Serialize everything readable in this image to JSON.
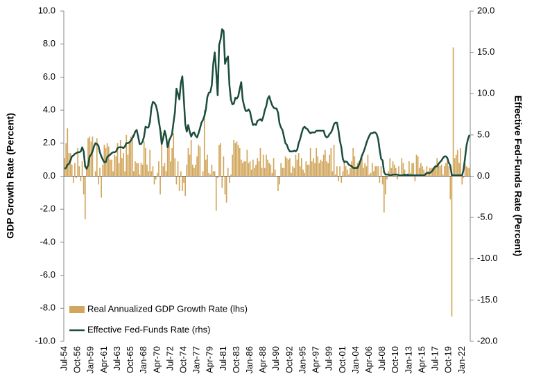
{
  "chart_data": {
    "type": "combo",
    "categories": [
      "Jul-54",
      null,
      null,
      null,
      null,
      null,
      null,
      null,
      null,
      "Oct-56",
      null,
      null,
      null,
      null,
      null,
      null,
      null,
      null,
      "Jan-59",
      null,
      null,
      null,
      null,
      null,
      null,
      null,
      null,
      "Apr-61",
      null,
      null,
      null,
      null,
      null,
      null,
      null,
      null,
      "Jul-63",
      null,
      null,
      null,
      null,
      null,
      null,
      null,
      null,
      "Oct-65",
      null,
      null,
      null,
      null,
      null,
      null,
      null,
      null,
      "Jan-68",
      null,
      null,
      null,
      null,
      null,
      null,
      null,
      null,
      "Apr-70",
      null,
      null,
      null,
      null,
      null,
      null,
      null,
      null,
      "Jul-72",
      null,
      null,
      null,
      null,
      null,
      null,
      null,
      null,
      "Oct-74",
      null,
      null,
      null,
      null,
      null,
      null,
      null,
      null,
      "Jan-77",
      null,
      null,
      null,
      null,
      null,
      null,
      null,
      null,
      "Apr-79",
      null,
      null,
      null,
      null,
      null,
      null,
      null,
      null,
      "Jul-81",
      null,
      null,
      null,
      null,
      null,
      null,
      null,
      null,
      "Oct-83",
      null,
      null,
      null,
      null,
      null,
      null,
      null,
      null,
      "Jan-86",
      null,
      null,
      null,
      null,
      null,
      null,
      null,
      null,
      "Apr-88",
      null,
      null,
      null,
      null,
      null,
      null,
      null,
      null,
      "Jul-90",
      null,
      null,
      null,
      null,
      null,
      null,
      null,
      null,
      "Oct-92",
      null,
      null,
      null,
      null,
      null,
      null,
      null,
      null,
      "Jan-95",
      null,
      null,
      null,
      null,
      null,
      null,
      null,
      null,
      "Apr-97",
      null,
      null,
      null,
      null,
      null,
      null,
      null,
      null,
      "Jul-99",
      null,
      null,
      null,
      null,
      null,
      null,
      null,
      null,
      "Oct-01",
      null,
      null,
      null,
      null,
      null,
      null,
      null,
      null,
      "Jan-04",
      null,
      null,
      null,
      null,
      null,
      null,
      null,
      null,
      "Apr-06",
      null,
      null,
      null,
      null,
      null,
      null,
      null,
      null,
      "Jul-08",
      null,
      null,
      null,
      null,
      null,
      null,
      null,
      null,
      "Oct-10",
      null,
      null,
      null,
      null,
      null,
      null,
      null,
      null,
      "Jan-13",
      null,
      null,
      null,
      null,
      null,
      null,
      null,
      null,
      "Apr-15",
      null,
      null,
      null,
      null,
      null,
      null,
      null,
      null,
      "Jul-17",
      null,
      null,
      null,
      null,
      null,
      null,
      null,
      null,
      "Oct-19",
      null,
      null,
      null,
      null,
      null,
      null,
      null,
      null,
      "Jan-22",
      null,
      null,
      null,
      null,
      null
    ],
    "series": [
      {
        "name": "Real Annualized GDP Growth Rate (lhs)",
        "type": "bar",
        "color": "#d2a65c",
        "values": [
          1.1,
          2.0,
          2.9,
          1.4,
          1.4,
          0.7,
          -0.4,
          0.8,
          -0.1,
          1.7,
          0.6,
          -0.3,
          0.9,
          -1.1,
          -2.6,
          0.6,
          2.3,
          2.4,
          2.1,
          2.4,
          0.0,
          0.3,
          2.3,
          -0.5,
          0.5,
          -1.3,
          0.7,
          1.9,
          1.7,
          2.0,
          1.8,
          1.0,
          1.0,
          0.3,
          1.3,
          1.2,
          2.0,
          0.8,
          2.2,
          1.1,
          1.4,
          0.3,
          2.5,
          1.3,
          2.0,
          2.4,
          2.5,
          0.3,
          0.9,
          0.8,
          0.8,
          0.1,
          0.8,
          0.7,
          2.1,
          1.7,
          0.7,
          0.3,
          1.6,
          0.3,
          0.6,
          -0.5,
          -0.2,
          0.2,
          0.9,
          -1.1,
          2.7,
          0.6,
          0.8,
          0.3,
          1.8,
          2.3,
          0.9,
          1.7,
          2.6,
          1.1,
          -0.5,
          0.9,
          -0.9,
          0.3,
          -0.9,
          -0.4,
          -1.2,
          0.7,
          1.7,
          1.3,
          2.2,
          0.7,
          0.5,
          0.7,
          1.2,
          1.9,
          1.8,
          0.0,
          0.3,
          4.0,
          1.0,
          1.3,
          0.2,
          0.1,
          0.7,
          0.3,
          0.3,
          -2.1,
          -0.1,
          1.9,
          2.0,
          -0.7,
          1.2,
          -1.1,
          -1.6,
          0.5,
          -0.4,
          0.1,
          1.3,
          2.2,
          2.0,
          2.1,
          1.9,
          1.7,
          1.0,
          0.8,
          0.9,
          0.9,
          1.6,
          0.8,
          0.9,
          0.4,
          1.0,
          0.5,
          0.7,
          1.1,
          0.9,
          1.7,
          0.5,
          1.3,
          0.5,
          1.3,
          1.0,
          0.8,
          0.7,
          0.2,
          1.1,
          0.4,
          0.0,
          -0.9,
          -0.5,
          0.8,
          0.5,
          0.5,
          1.2,
          1.1,
          1.0,
          1.1,
          0.2,
          0.6,
          0.5,
          1.3,
          1.0,
          1.4,
          0.6,
          1.1,
          0.4,
          0.2,
          0.9,
          0.7,
          0.7,
          1.7,
          0.9,
          1.1,
          0.8,
          1.7,
          1.2,
          0.8,
          1.0,
          0.9,
          1.3,
          1.6,
          0.9,
          0.8,
          1.3,
          1.7,
          0.3,
          1.9,
          0.1,
          0.6,
          -0.3,
          0.6,
          -0.4,
          0.3,
          0.8,
          0.6,
          0.4,
          0.1,
          0.5,
          0.9,
          1.7,
          1.2,
          0.6,
          0.8,
          0.9,
          1.0,
          1.1,
          0.5,
          0.8,
          0.6,
          1.3,
          0.1,
          0.2,
          0.8,
          0.3,
          0.6,
          0.6,
          0.6,
          -0.4,
          0.6,
          -0.5,
          -2.2,
          -1.1,
          -0.2,
          0.3,
          1.1,
          0.5,
          0.9,
          0.7,
          0.5,
          -0.2,
          0.6,
          0.0,
          1.1,
          0.8,
          0.4,
          0.1,
          0.1,
          0.9,
          0.2,
          0.8,
          0.8,
          -0.3,
          1.3,
          1.2,
          0.5,
          0.8,
          0.6,
          0.4,
          0.2,
          0.6,
          0.3,
          0.5,
          0.5,
          0.5,
          0.6,
          0.7,
          1.1,
          0.8,
          0.6,
          0.7,
          0.1,
          0.6,
          0.8,
          0.9,
          0.6,
          -1.4,
          -8.5,
          7.8,
          1.1,
          1.3,
          1.6,
          0.8,
          1.7,
          -0.5,
          -0.1,
          0.8,
          0.6,
          0.5,
          0.5
        ]
      },
      {
        "name": "Effective Fed-Funds Rate (rhs)",
        "type": "line",
        "axis": "y2",
        "color": "#1b4d3e",
        "values": [
          0.9,
          1.0,
          1.4,
          1.5,
          1.9,
          2.4,
          2.5,
          2.7,
          2.8,
          2.9,
          2.9,
          3.0,
          3.5,
          3.0,
          1.2,
          0.9,
          1.3,
          2.4,
          2.6,
          3.0,
          3.6,
          4.0,
          3.9,
          3.7,
          2.9,
          2.4,
          2.0,
          1.7,
          1.7,
          2.3,
          2.5,
          2.6,
          2.8,
          2.9,
          2.9,
          3.0,
          3.4,
          3.5,
          3.5,
          3.5,
          3.4,
          3.6,
          4.0,
          4.0,
          4.1,
          4.3,
          4.6,
          4.9,
          5.4,
          5.6,
          4.8,
          3.9,
          3.9,
          4.2,
          4.8,
          6.0,
          5.9,
          5.9,
          6.6,
          8.3,
          9.0,
          8.9,
          8.6,
          7.9,
          6.7,
          5.6,
          3.9,
          4.6,
          5.5,
          4.8,
          3.5,
          4.3,
          4.7,
          5.1,
          6.5,
          7.8,
          10.6,
          10.0,
          9.3,
          11.3,
          12.1,
          9.4,
          6.3,
          5.4,
          6.2,
          5.4,
          4.8,
          5.2,
          5.3,
          4.9,
          4.7,
          5.2,
          5.8,
          6.5,
          6.8,
          7.3,
          8.1,
          9.6,
          10.1,
          10.2,
          11.0,
          13.6,
          15.0,
          12.7,
          9.8,
          15.9,
          16.6,
          17.8,
          17.6,
          13.6,
          14.2,
          14.5,
          11.0,
          9.3,
          8.7,
          8.8,
          9.5,
          9.4,
          9.7,
          10.6,
          11.4,
          9.3,
          8.5,
          7.9,
          7.9,
          8.1,
          7.8,
          6.9,
          6.2,
          6.3,
          6.2,
          6.7,
          6.8,
          6.9,
          6.7,
          7.2,
          8.0,
          8.5,
          9.4,
          9.7,
          9.1,
          8.6,
          8.3,
          8.2,
          8.2,
          7.7,
          6.4,
          5.9,
          5.6,
          4.8,
          4.0,
          3.8,
          3.3,
          3.0,
          3.0,
          3.0,
          3.1,
          3.0,
          3.2,
          4.0,
          4.5,
          5.2,
          5.8,
          6.0,
          5.8,
          5.7,
          5.4,
          5.2,
          5.3,
          5.3,
          5.3,
          5.5,
          5.5,
          5.5,
          5.5,
          5.5,
          5.5,
          4.9,
          4.7,
          4.8,
          5.1,
          5.3,
          5.7,
          6.3,
          6.5,
          6.5,
          5.6,
          4.3,
          3.5,
          2.1,
          1.7,
          1.8,
          1.7,
          1.4,
          1.3,
          1.2,
          1.0,
          1.0,
          1.0,
          1.0,
          1.4,
          1.9,
          2.5,
          2.9,
          3.4,
          4.0,
          4.5,
          4.9,
          5.2,
          5.2,
          5.3,
          5.3,
          5.1,
          4.5,
          3.2,
          2.1,
          1.9,
          0.5,
          0.2,
          0.2,
          0.2,
          0.1,
          0.1,
          0.2,
          0.2,
          0.2,
          0.2,
          0.1,
          0.1,
          0.1,
          0.1,
          0.2,
          0.1,
          0.2,
          0.1,
          0.1,
          0.1,
          0.1,
          0.1,
          0.1,
          0.1,
          0.1,
          0.1,
          0.1,
          0.1,
          0.2,
          0.4,
          0.4,
          0.4,
          0.5,
          0.7,
          1.0,
          1.2,
          1.2,
          1.5,
          1.7,
          1.9,
          2.2,
          2.4,
          2.4,
          2.2,
          1.6,
          1.3,
          0.1,
          0.1,
          0.1,
          0.1,
          0.1,
          0.1,
          0.1,
          0.1,
          0.8,
          2.2,
          3.7,
          4.5,
          5.0
        ]
      }
    ],
    "ylabel": "GDP Growth Rate (Percent)",
    "y2label": "Effective Fed-Funds Rate (Percent)",
    "ylim": [
      -10,
      10
    ],
    "yticks": [
      {
        "value": -10,
        "label": "-10.0"
      },
      {
        "value": -8,
        "label": "-8.0"
      },
      {
        "value": -6,
        "label": "-6.0"
      },
      {
        "value": -4,
        "label": "-4.0"
      },
      {
        "value": -2,
        "label": "-2.0"
      },
      {
        "value": 0,
        "label": "0.0"
      },
      {
        "value": 2,
        "label": "2.0"
      },
      {
        "value": 4,
        "label": "4.0"
      },
      {
        "value": 6,
        "label": "6.0"
      },
      {
        "value": 8,
        "label": "8.0"
      },
      {
        "value": 10,
        "label": "10.0"
      }
    ],
    "y2lim": [
      -20,
      20
    ],
    "y2ticks": [
      {
        "value": -20,
        "label": "-20.0"
      },
      {
        "value": -15,
        "label": "-15.0"
      },
      {
        "value": -10,
        "label": "-10.0"
      },
      {
        "value": -5,
        "label": "-5.0"
      },
      {
        "value": 0,
        "label": "0.0"
      },
      {
        "value": 5,
        "label": "5.0"
      },
      {
        "value": 10,
        "label": "10.0"
      },
      {
        "value": 15,
        "label": "15.0"
      },
      {
        "value": 20,
        "label": "20.0"
      }
    ],
    "legend": "lower left"
  }
}
